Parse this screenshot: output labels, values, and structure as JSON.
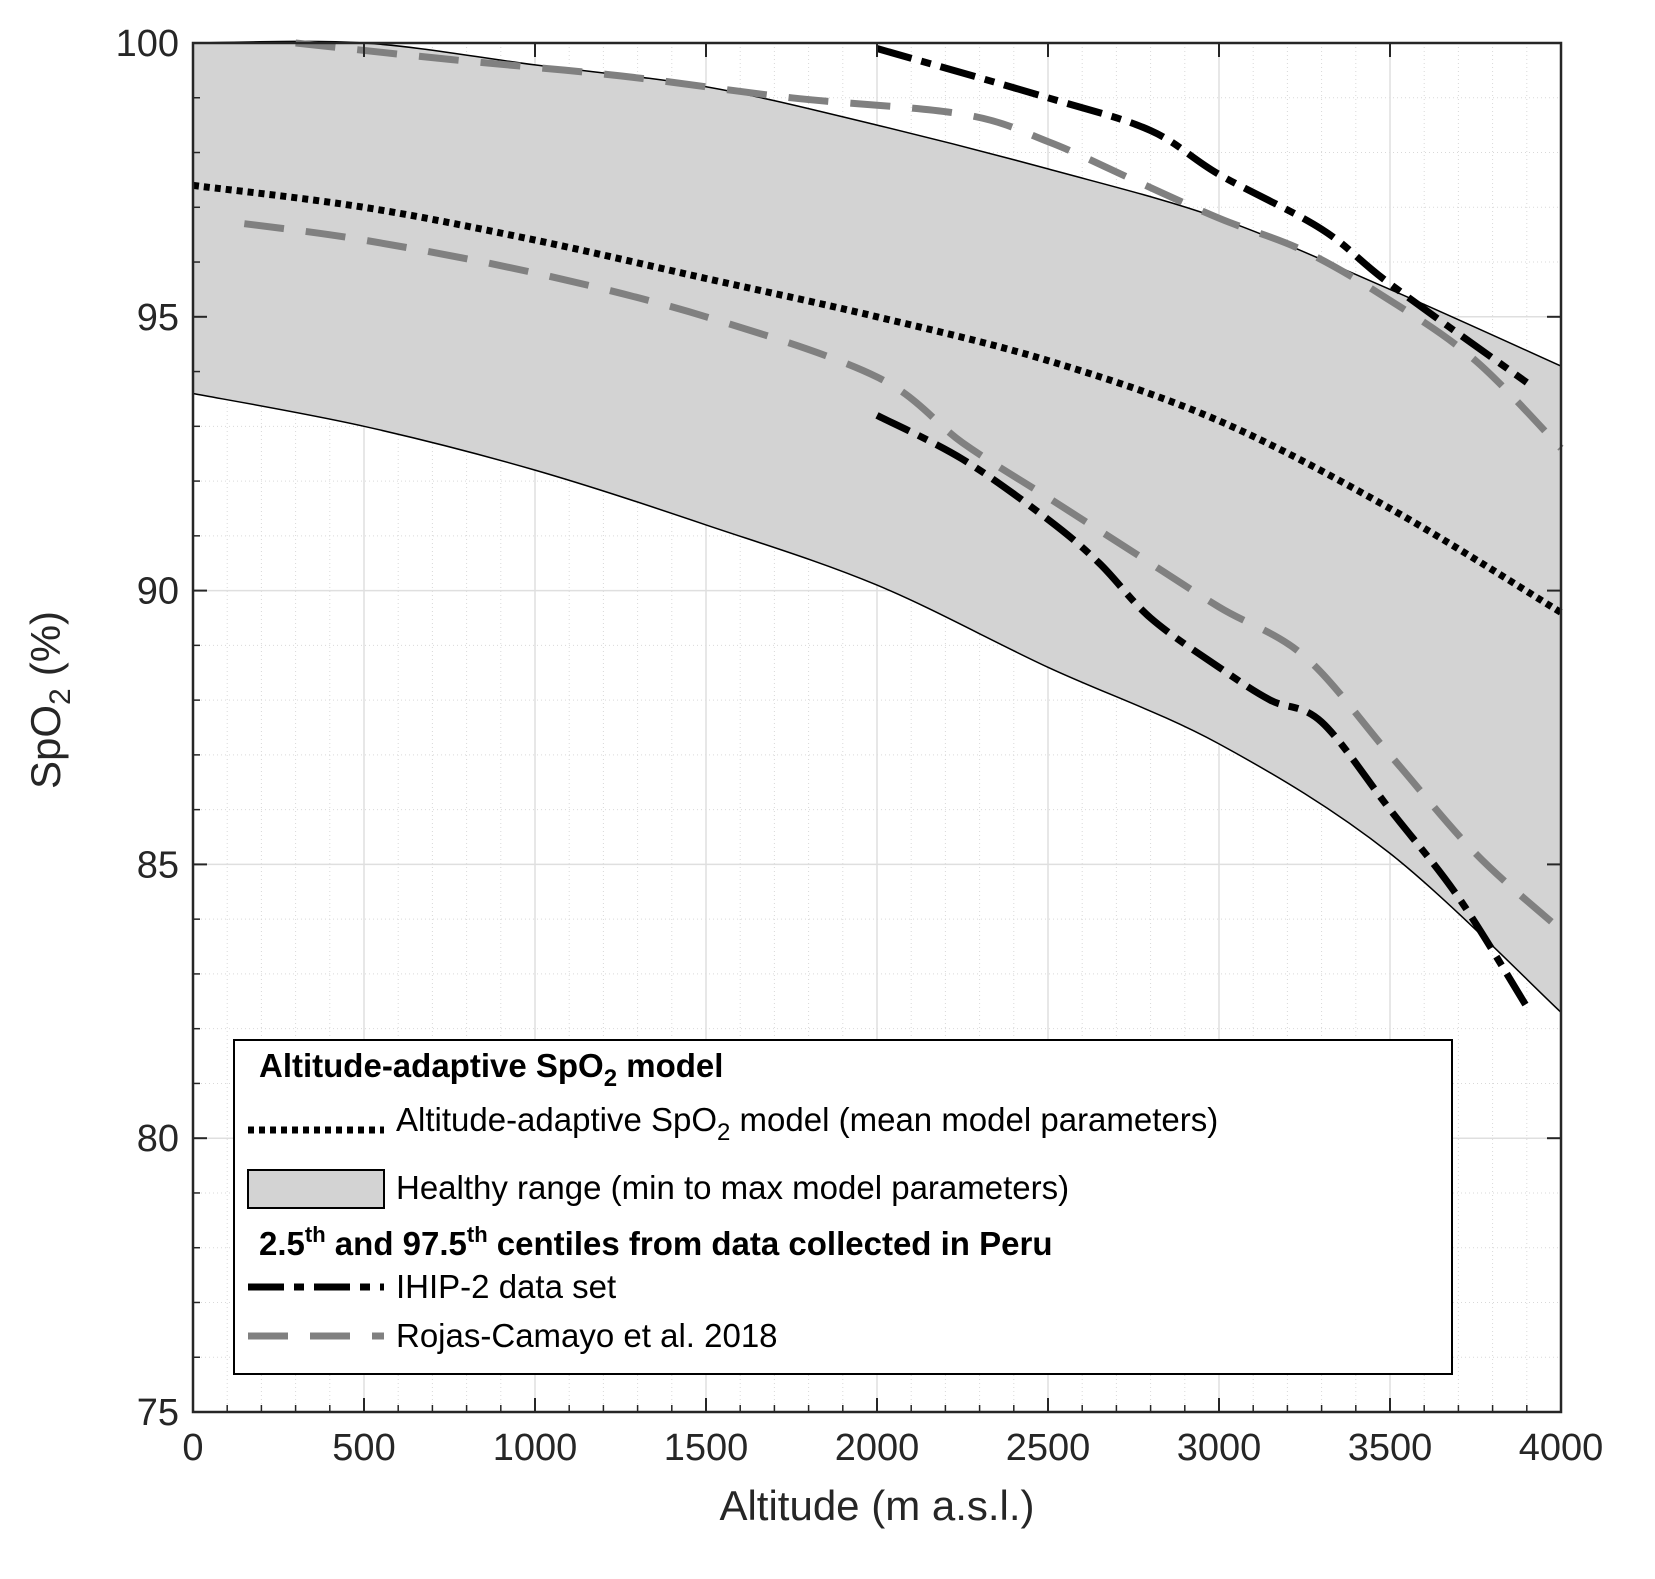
{
  "chart_data": {
    "type": "line",
    "xlabel": "Altitude (m a.s.l.)",
    "ylabel": {
      "base": "SpO",
      "sub": "2",
      "unit": "(%)"
    },
    "xlim": [
      0,
      4000
    ],
    "ylim": [
      75,
      100
    ],
    "xticks": [
      0,
      500,
      1000,
      1500,
      2000,
      2500,
      3000,
      3500,
      4000
    ],
    "yticks": [
      75,
      80,
      85,
      90,
      95,
      100
    ],
    "grid": true,
    "minor_grid": true,
    "legend_position": "bottom",
    "band": {
      "name": "Healthy range (min to max model parameters)",
      "x": [
        0,
        500,
        1000,
        1500,
        2000,
        2500,
        3000,
        3500,
        4000
      ],
      "upper": [
        100,
        100,
        99.6,
        99.2,
        98.5,
        97.7,
        96.8,
        95.5,
        94.1
      ],
      "lower": [
        93.6,
        93.0,
        92.2,
        91.2,
        90.1,
        88.6,
        87.2,
        85.2,
        82.3
      ],
      "color": "#d3d3d3"
    },
    "series": [
      {
        "name": "Altitude-adaptive SpO2 model (mean model parameters)",
        "style": "dotted",
        "color": "#000000",
        "x": [
          0,
          500,
          1000,
          1500,
          2000,
          2500,
          3000,
          3500,
          4000
        ],
        "y": [
          97.4,
          97.0,
          96.4,
          95.7,
          95.0,
          94.2,
          93.1,
          91.5,
          89.6
        ]
      },
      {
        "name": "IHIP-2 data set (97.5th centile)",
        "style": "dashdot",
        "color": "#000000",
        "x": [
          2000,
          2500,
          2800,
          3000,
          3300,
          3500,
          3900
        ],
        "y": [
          99.9,
          99.0,
          98.4,
          97.6,
          96.6,
          95.6,
          93.8
        ]
      },
      {
        "name": "IHIP-2 data set (2.5th centile)",
        "style": "dashdot",
        "color": "#000000",
        "x": [
          2000,
          2250,
          2500,
          2650,
          2800,
          3000,
          3150,
          3300,
          3500,
          3700,
          3900
        ],
        "y": [
          93.2,
          92.4,
          91.3,
          90.5,
          89.5,
          88.6,
          88.0,
          87.6,
          86.0,
          84.4,
          82.4
        ]
      },
      {
        "name": "Rojas-Camayo et al. 2018 (97.5th centile)",
        "style": "dashed",
        "color": "#808080",
        "x": [
          300,
          750,
          1250,
          1750,
          2250,
          2500,
          2750,
          3000,
          3250,
          3500,
          3750,
          4000
        ],
        "y": [
          100,
          99.7,
          99.4,
          99.0,
          98.7,
          98.2,
          97.5,
          96.8,
          96.2,
          95.3,
          94.2,
          92.6
        ]
      },
      {
        "name": "Rojas-Camayo et al. 2018 (2.5th centile)",
        "style": "dashed",
        "color": "#808080",
        "x": [
          150,
          500,
          1000,
          1500,
          2000,
          2250,
          2500,
          2750,
          3000,
          3250,
          3500,
          3750,
          4000
        ],
        "y": [
          96.7,
          96.4,
          95.8,
          95.0,
          93.9,
          92.7,
          91.7,
          90.7,
          89.7,
          88.8,
          87.0,
          85.2,
          83.8
        ]
      }
    ]
  },
  "legend": {
    "heading1": {
      "text": "Altitude-adaptive SpO",
      "sub": "2",
      "tail": " model"
    },
    "model_line": {
      "text": "Altitude-adaptive SpO",
      "sub": "2",
      "tail": " model (mean model parameters)"
    },
    "band_entry": "Healthy range (min to max model parameters)",
    "heading2": {
      "p1": "2.5",
      "sup1": "th",
      "p2": " and 97.5",
      "sup2": "th",
      "p3": " centiles from data collected in Peru"
    },
    "ihip_entry": "IHIP-2 data set",
    "rojas_entry": "Rojas-Camayo et al. 2018"
  }
}
